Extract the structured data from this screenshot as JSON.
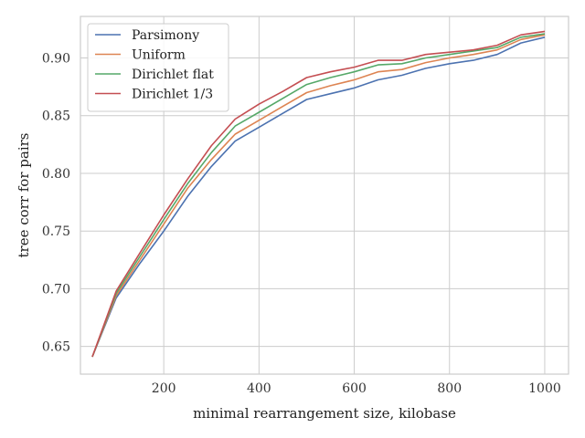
{
  "chart_data": {
    "type": "line",
    "title": "",
    "xlabel": "minimal rearrangement size, kilobase",
    "ylabel": "tree corr for pairs",
    "xlim": [
      25,
      1050
    ],
    "ylim": [
      0.626,
      0.936
    ],
    "xticks": [
      200,
      400,
      600,
      800,
      1000
    ],
    "yticks": [
      0.65,
      0.7,
      0.75,
      0.8,
      0.85,
      0.9
    ],
    "ytick_labels": [
      "0.65",
      "0.70",
      "0.75",
      "0.80",
      "0.85",
      "0.90"
    ],
    "grid": true,
    "legend_position": "top-left",
    "x": [
      50,
      100,
      150,
      200,
      250,
      300,
      350,
      400,
      450,
      500,
      550,
      600,
      650,
      700,
      750,
      800,
      850,
      900,
      950,
      1000
    ],
    "series": [
      {
        "name": "Parsimony",
        "color": "#4c72b0",
        "values": [
          0.641,
          0.692,
          0.722,
          0.75,
          0.78,
          0.806,
          0.828,
          0.84,
          0.852,
          0.864,
          0.869,
          0.874,
          0.881,
          0.885,
          0.891,
          0.895,
          0.898,
          0.903,
          0.913,
          0.918
        ]
      },
      {
        "name": "Uniform",
        "color": "#dd8452",
        "values": [
          0.641,
          0.694,
          0.725,
          0.756,
          0.787,
          0.812,
          0.834,
          0.846,
          0.858,
          0.87,
          0.876,
          0.881,
          0.888,
          0.89,
          0.896,
          0.9,
          0.903,
          0.907,
          0.916,
          0.92
        ]
      },
      {
        "name": "Dirichlet flat",
        "color": "#55a868",
        "values": [
          0.641,
          0.696,
          0.728,
          0.76,
          0.791,
          0.818,
          0.841,
          0.853,
          0.865,
          0.877,
          0.883,
          0.888,
          0.894,
          0.895,
          0.9,
          0.903,
          0.906,
          0.909,
          0.918,
          0.921
        ]
      },
      {
        "name": "Dirichlet 1/3",
        "color": "#c44e52",
        "values": [
          0.641,
          0.698,
          0.731,
          0.764,
          0.795,
          0.824,
          0.847,
          0.86,
          0.871,
          0.883,
          0.888,
          0.892,
          0.898,
          0.898,
          0.903,
          0.905,
          0.907,
          0.911,
          0.92,
          0.923
        ]
      }
    ]
  }
}
